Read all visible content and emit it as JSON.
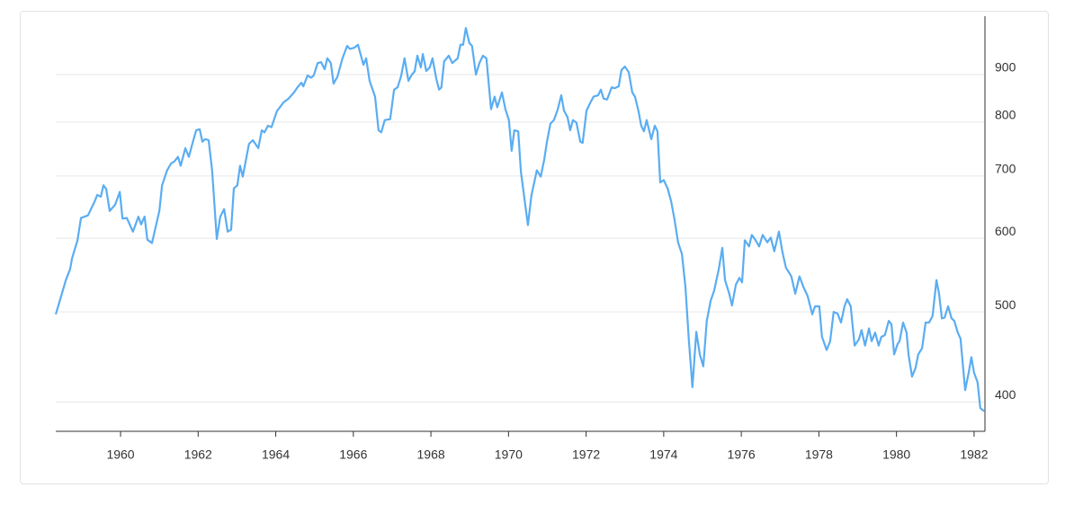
{
  "chart_data": {
    "type": "line",
    "log_scale": true,
    "grid": true,
    "color": "#5aadf2",
    "xlim": [
      1958.33,
      1982.28
    ],
    "xticks": [
      1960,
      1962,
      1964,
      1966,
      1968,
      1970,
      1972,
      1974,
      1976,
      1978,
      1980,
      1982
    ],
    "ylim": [
      372,
      1040
    ],
    "yticks": [
      400,
      500,
      600,
      700,
      800,
      900
    ],
    "x": [
      1958.33,
      1958.47,
      1958.59,
      1958.7,
      1958.75,
      1958.89,
      1958.98,
      1959.16,
      1959.33,
      1959.4,
      1959.49,
      1959.56,
      1959.63,
      1959.72,
      1959.86,
      1959.98,
      1960.05,
      1960.16,
      1960.32,
      1960.46,
      1960.53,
      1960.62,
      1960.69,
      1960.81,
      1961.0,
      1961.07,
      1961.2,
      1961.3,
      1961.39,
      1961.48,
      1961.55,
      1961.67,
      1961.76,
      1961.85,
      1961.95,
      1962.04,
      1962.11,
      1962.18,
      1962.27,
      1962.36,
      1962.48,
      1962.57,
      1962.67,
      1962.76,
      1962.85,
      1962.92,
      1963.01,
      1963.08,
      1963.15,
      1963.31,
      1963.41,
      1963.55,
      1963.64,
      1963.71,
      1963.8,
      1963.89,
      1964.03,
      1964.2,
      1964.33,
      1964.47,
      1964.57,
      1964.66,
      1964.71,
      1964.82,
      1964.91,
      1964.98,
      1965.08,
      1965.17,
      1965.26,
      1965.33,
      1965.42,
      1965.49,
      1965.59,
      1965.72,
      1965.84,
      1965.91,
      1966.03,
      1966.12,
      1966.26,
      1966.33,
      1966.42,
      1966.56,
      1966.65,
      1966.72,
      1966.81,
      1966.95,
      1967.05,
      1967.14,
      1967.23,
      1967.32,
      1967.42,
      1967.51,
      1967.58,
      1967.65,
      1967.74,
      1967.79,
      1967.88,
      1967.97,
      1968.04,
      1968.14,
      1968.21,
      1968.27,
      1968.34,
      1968.46,
      1968.55,
      1968.69,
      1968.76,
      1968.83,
      1968.9,
      1968.99,
      1969.06,
      1969.16,
      1969.25,
      1969.34,
      1969.43,
      1969.55,
      1969.64,
      1969.71,
      1969.83,
      1969.92,
      1970.01,
      1970.08,
      1970.15,
      1970.25,
      1970.32,
      1970.5,
      1970.59,
      1970.73,
      1970.83,
      1970.92,
      1970.99,
      1971.08,
      1971.17,
      1971.27,
      1971.36,
      1971.43,
      1971.52,
      1971.59,
      1971.66,
      1971.75,
      1971.85,
      1971.91,
      1972.01,
      1972.1,
      1972.19,
      1972.31,
      1972.38,
      1972.45,
      1972.54,
      1972.66,
      1972.73,
      1972.84,
      1972.91,
      1973.0,
      1973.1,
      1973.19,
      1973.26,
      1973.35,
      1973.42,
      1973.49,
      1973.56,
      1973.68,
      1973.77,
      1973.84,
      1973.91,
      1974.0,
      1974.1,
      1974.19,
      1974.28,
      1974.37,
      1974.47,
      1974.56,
      1974.65,
      1974.74,
      1974.84,
      1974.93,
      1975.02,
      1975.11,
      1975.21,
      1975.3,
      1975.42,
      1975.51,
      1975.58,
      1975.69,
      1975.76,
      1975.86,
      1975.95,
      1976.02,
      1976.09,
      1976.2,
      1976.27,
      1976.37,
      1976.46,
      1976.55,
      1976.67,
      1976.76,
      1976.85,
      1976.97,
      1977.06,
      1977.15,
      1977.29,
      1977.39,
      1977.5,
      1977.6,
      1977.71,
      1977.83,
      1977.9,
      1978.01,
      1978.08,
      1978.2,
      1978.29,
      1978.38,
      1978.48,
      1978.57,
      1978.66,
      1978.73,
      1978.82,
      1978.92,
      1979.03,
      1979.1,
      1979.19,
      1979.29,
      1979.36,
      1979.45,
      1979.54,
      1979.61,
      1979.7,
      1979.8,
      1979.87,
      1979.94,
      1980.03,
      1980.08,
      1980.17,
      1980.26,
      1980.31,
      1980.4,
      1980.49,
      1980.56,
      1980.66,
      1980.75,
      1980.84,
      1980.93,
      1981.03,
      1981.1,
      1981.17,
      1981.24,
      1981.33,
      1981.42,
      1981.49,
      1981.58,
      1981.65,
      1981.77,
      1981.86,
      1981.93,
      1982.0,
      1982.09,
      1982.16,
      1982.26
    ],
    "values": [
      497,
      520,
      541,
      556,
      571,
      597,
      631,
      635,
      657,
      668,
      665,
      684,
      678,
      642,
      652,
      673,
      630,
      631,
      610,
      633,
      621,
      633,
      598,
      593,
      642,
      684,
      710,
      722,
      726,
      734,
      718,
      750,
      734,
      758,
      784,
      786,
      762,
      767,
      765,
      710,
      599,
      633,
      645,
      610,
      613,
      679,
      684,
      718,
      699,
      758,
      765,
      750,
      784,
      780,
      793,
      790,
      822,
      840,
      848,
      861,
      873,
      882,
      874,
      898,
      893,
      898,
      926,
      928,
      912,
      937,
      926,
      880,
      895,
      937,
      966,
      959,
      962,
      969,
      922,
      937,
      886,
      852,
      784,
      780,
      804,
      806,
      867,
      872,
      896,
      937,
      886,
      900,
      907,
      943,
      916,
      947,
      908,
      916,
      937,
      890,
      867,
      872,
      930,
      943,
      926,
      937,
      969,
      969,
      1010,
      973,
      966,
      900,
      926,
      943,
      937,
      826,
      852,
      830,
      861,
      826,
      804,
      745,
      784,
      782,
      707,
      620,
      667,
      710,
      699,
      729,
      762,
      797,
      804,
      826,
      855,
      823,
      810,
      784,
      804,
      799,
      762,
      760,
      823,
      838,
      852,
      855,
      867,
      848,
      846,
      872,
      870,
      874,
      910,
      918,
      905,
      861,
      852,
      822,
      793,
      782,
      804,
      767,
      793,
      782,
      689,
      693,
      679,
      658,
      628,
      594,
      577,
      532,
      465,
      415,
      476,
      450,
      437,
      489,
      514,
      527,
      556,
      586,
      541,
      523,
      508,
      535,
      544,
      538,
      597,
      588,
      605,
      597,
      588,
      605,
      594,
      601,
      581,
      610,
      580,
      558,
      546,
      523,
      546,
      532,
      520,
      497,
      507,
      507,
      470,
      455,
      465,
      500,
      498,
      487,
      507,
      516,
      507,
      460,
      467,
      478,
      460,
      480,
      465,
      475,
      460,
      470,
      472,
      489,
      485,
      450,
      462,
      465,
      487,
      475,
      450,
      426,
      435,
      450,
      457,
      487,
      487,
      495,
      541,
      522,
      492,
      493,
      507,
      492,
      489,
      475,
      468,
      412,
      430,
      447,
      430,
      420,
      394,
      391
    ]
  }
}
